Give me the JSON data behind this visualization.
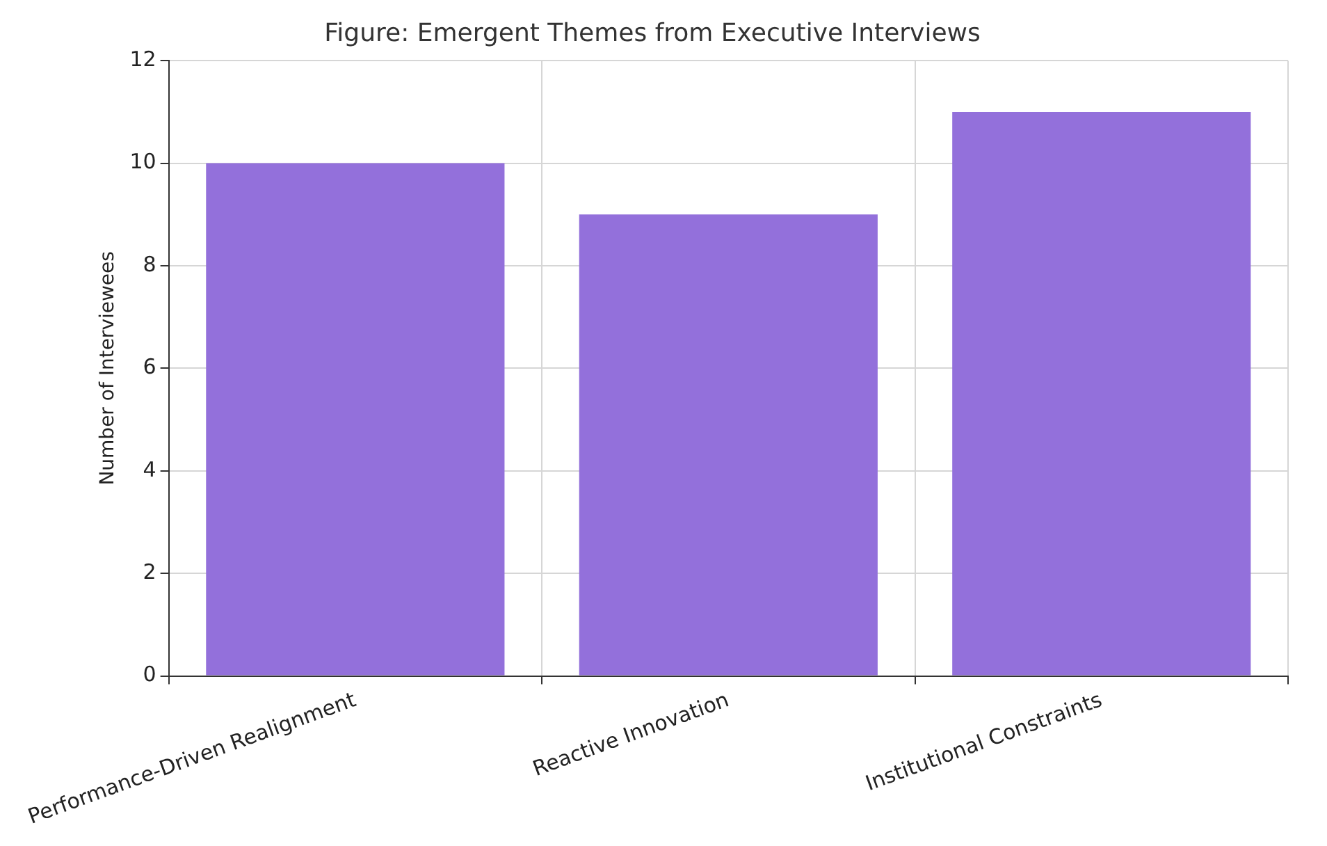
{
  "chart_data": {
    "type": "bar",
    "title": "Figure: Emergent Themes from Executive Interviews",
    "ylabel": "Number of Interviewees",
    "categories": [
      "Performance-Driven Realignment",
      "Reactive Innovation",
      "Institutional Constraints"
    ],
    "values": [
      10,
      9,
      11
    ],
    "color": "#9370db",
    "ylim": [
      0,
      12
    ],
    "yticks": [
      0,
      2,
      4,
      6,
      8,
      10,
      12
    ],
    "grid": true
  }
}
